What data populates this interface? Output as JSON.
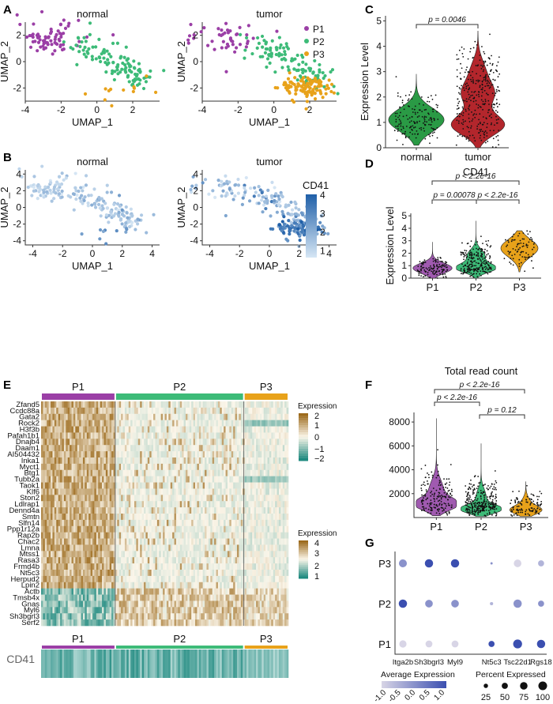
{
  "panels": {
    "A": "A",
    "B": "B",
    "C": "C",
    "D": "D",
    "E": "E",
    "F": "F",
    "G": "G"
  },
  "chart_data": [
    {
      "panel": "A",
      "type": "scatter",
      "facets": [
        "normal",
        "tumor"
      ],
      "xlabel": "UMAP_1",
      "ylabel": "UMAP_2",
      "xticks": [
        "-4",
        "-2",
        "0",
        "2"
      ],
      "yticks": [
        "2",
        "0",
        "-2"
      ],
      "xlim": [
        -4,
        3.5
      ],
      "ylim": [
        -3,
        3
      ],
      "legend": [
        {
          "name": "P1",
          "color": "#9b3fa6"
        },
        {
          "name": "P2",
          "color": "#3dbb78"
        },
        {
          "name": "P3",
          "color": "#e8a21a"
        }
      ]
    },
    {
      "panel": "B",
      "type": "scatter",
      "facets": [
        "normal",
        "tumor"
      ],
      "xlabel": "UMAP_1",
      "ylabel": "UMAP_2",
      "xticks": [
        "-4",
        "-2",
        "0",
        "2",
        "4"
      ],
      "yticks": [
        "4",
        "2",
        "0",
        "-2",
        "-4"
      ],
      "colorbar": {
        "title": "CD41",
        "ticks": [
          "4",
          "3",
          "2",
          "1"
        ],
        "low": "#d6e6f4",
        "high": "#1f5fa8"
      }
    },
    {
      "panel": "C",
      "type": "violin",
      "title": "CD41",
      "ylabel": "Expression Level",
      "categories": [
        "normal",
        "tumor"
      ],
      "colors": [
        "#2a9a45",
        "#b3262c"
      ],
      "yticks": [
        "0",
        "1",
        "2",
        "3",
        "4",
        "5"
      ],
      "ylim": [
        0,
        5
      ],
      "comparisons": [
        {
          "label": "p = 0.0046"
        }
      ]
    },
    {
      "panel": "D",
      "type": "violin",
      "title": "CD41",
      "ylabel": "Expression Level",
      "categories": [
        "P1",
        "P2",
        "P3"
      ],
      "colors": [
        "#a05ab0",
        "#3dbb78",
        "#e8a21a"
      ],
      "yticks": [
        "0",
        "1",
        "2",
        "3",
        "4",
        "5"
      ],
      "ylim": [
        0,
        5
      ],
      "comparisons": [
        {
          "label": "p < 2.2e-16"
        },
        {
          "label": "p = 0.00078"
        },
        {
          "label": "p < 2.2e-16"
        }
      ]
    },
    {
      "panel": "E",
      "type": "heatmap",
      "groups": [
        "P1",
        "P2",
        "P3"
      ],
      "group_colors": [
        "#9b3fa6",
        "#3dbb78",
        "#e8a21a"
      ],
      "rows": [
        "Zfand5",
        "Ccdc88a",
        "Gata2",
        "Rock2",
        "H3f3b",
        "Pafah1b1",
        "Dnajb4",
        "Daam1",
        "AI504432",
        "Inka1",
        "Myct1",
        "Btg1",
        "Tubb2a",
        "Taok1",
        "Klf6",
        "Ston2",
        "Ldlrap1",
        "Dennd4a",
        "Smtn",
        "Slfn14",
        "Ppp1r12a",
        "Rap2b",
        "Chac2",
        "Lmna",
        "Mtss1",
        "Rasa3",
        "Frmd4b",
        "Nt5c3",
        "Herpud2",
        "Lpin2",
        "Actb",
        "Tmsb4x",
        "Gnas",
        "Myl6",
        "Sh3bgrl3",
        "Serf2"
      ],
      "legend1": {
        "title": "Expression",
        "ticks": [
          "2",
          "1",
          "0",
          "−1",
          "−2"
        ]
      },
      "legend2": {
        "title": "Expression",
        "ticks": [
          "4",
          "3",
          "2",
          "1"
        ]
      },
      "bottom_track": {
        "label": "CD41",
        "groups": [
          "P1",
          "P2",
          "P3"
        ]
      }
    },
    {
      "panel": "F",
      "type": "violin",
      "title": "Total read count",
      "categories": [
        "P1",
        "P2",
        "P3"
      ],
      "colors": [
        "#a05ab0",
        "#3dbb78",
        "#e8a21a"
      ],
      "yticks": [
        "2000",
        "4000",
        "6000",
        "8000"
      ],
      "comparisons": [
        {
          "label": "p < 2.2e-16"
        },
        {
          "label": "p < 2.2e-16"
        },
        {
          "label": "p = 0.12"
        }
      ]
    },
    {
      "panel": "G",
      "type": "dotplot",
      "rows": [
        "P3",
        "P2",
        "P1"
      ],
      "columns": [
        "Itga2b",
        "Sh3bgrl3",
        "Myl9",
        "Nt5c3",
        "Tsc22d1",
        "Rgs18"
      ],
      "avg_expression": [
        [
          0,
          1,
          1,
          0,
          -1,
          -0.5
        ],
        [
          1,
          0,
          0,
          -0.5,
          0,
          0
        ],
        [
          -1,
          -1,
          -1,
          1,
          1,
          1
        ]
      ],
      "pct_expressed": [
        [
          60,
          65,
          65,
          5,
          55,
          35
        ],
        [
          65,
          55,
          55,
          10,
          65,
          35
        ],
        [
          50,
          45,
          45,
          35,
          75,
          65
        ]
      ],
      "legend_color": {
        "title": "Average Expression",
        "ticks": [
          "-1.0",
          "-0.5",
          "0.0",
          "0.5",
          "1.0"
        ]
      },
      "legend_size": {
        "title": "Percent Expressed",
        "ticks": [
          "25",
          "50",
          "75",
          "100"
        ]
      }
    }
  ]
}
